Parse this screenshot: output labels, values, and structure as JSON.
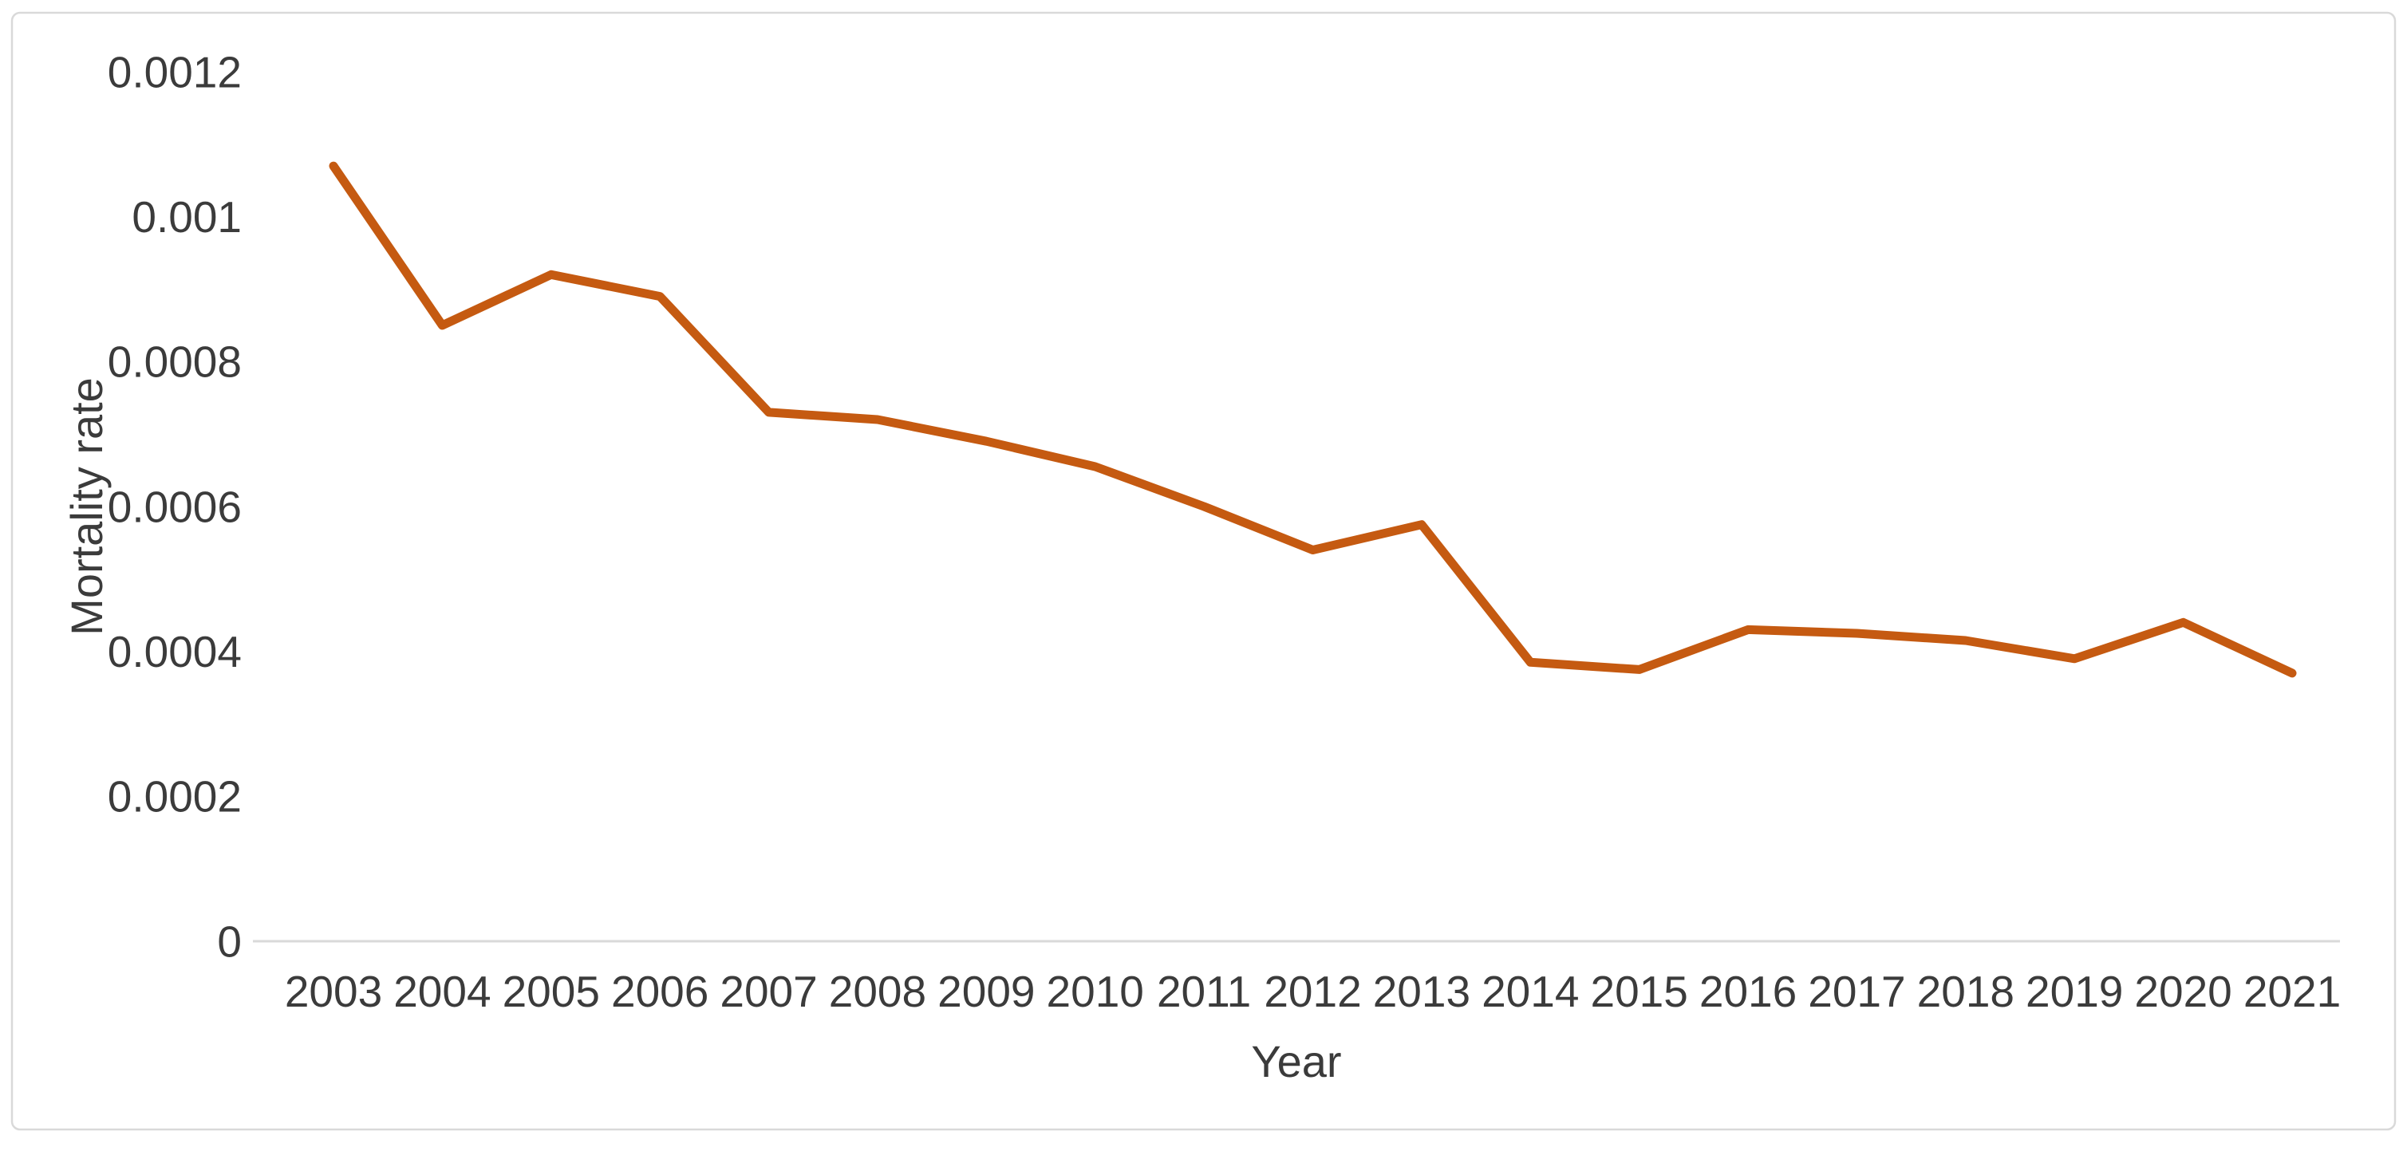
{
  "chart_data": {
    "type": "line",
    "title": "",
    "xlabel": "Year",
    "ylabel": "Mortality rate",
    "categories": [
      2003,
      2004,
      2005,
      2006,
      2007,
      2008,
      2009,
      2010,
      2011,
      2012,
      2013,
      2014,
      2015,
      2016,
      2017,
      2018,
      2019,
      2020,
      2021
    ],
    "series": [
      {
        "name": "Mortality rate",
        "values": [
          0.00107,
          0.00085,
          0.00092,
          0.00089,
          0.00073,
          0.00072,
          0.00069,
          0.000655,
          0.0006,
          0.00054,
          0.000575,
          0.000385,
          0.000375,
          0.00043,
          0.000425,
          0.000415,
          0.00039,
          0.00044,
          0.00037
        ],
        "color": "#C55A11"
      }
    ],
    "ylim": [
      0,
      0.0012
    ],
    "yticks": [
      {
        "value": 0,
        "label": "0"
      },
      {
        "value": 0.0002,
        "label": "0.0002"
      },
      {
        "value": 0.0004,
        "label": "0.0004"
      },
      {
        "value": 0.0006,
        "label": "0.0006"
      },
      {
        "value": 0.0008,
        "label": "0.0008"
      },
      {
        "value": 0.001,
        "label": "0.001"
      },
      {
        "value": 0.0012,
        "label": "0.0012"
      }
    ],
    "grid": "off",
    "legend": "none",
    "colors": {
      "line": "#C55A11",
      "axis": "#D9D9D9",
      "border": "#D9D9D9",
      "text": "#3B3B3B",
      "background": "#FFFFFF"
    }
  }
}
